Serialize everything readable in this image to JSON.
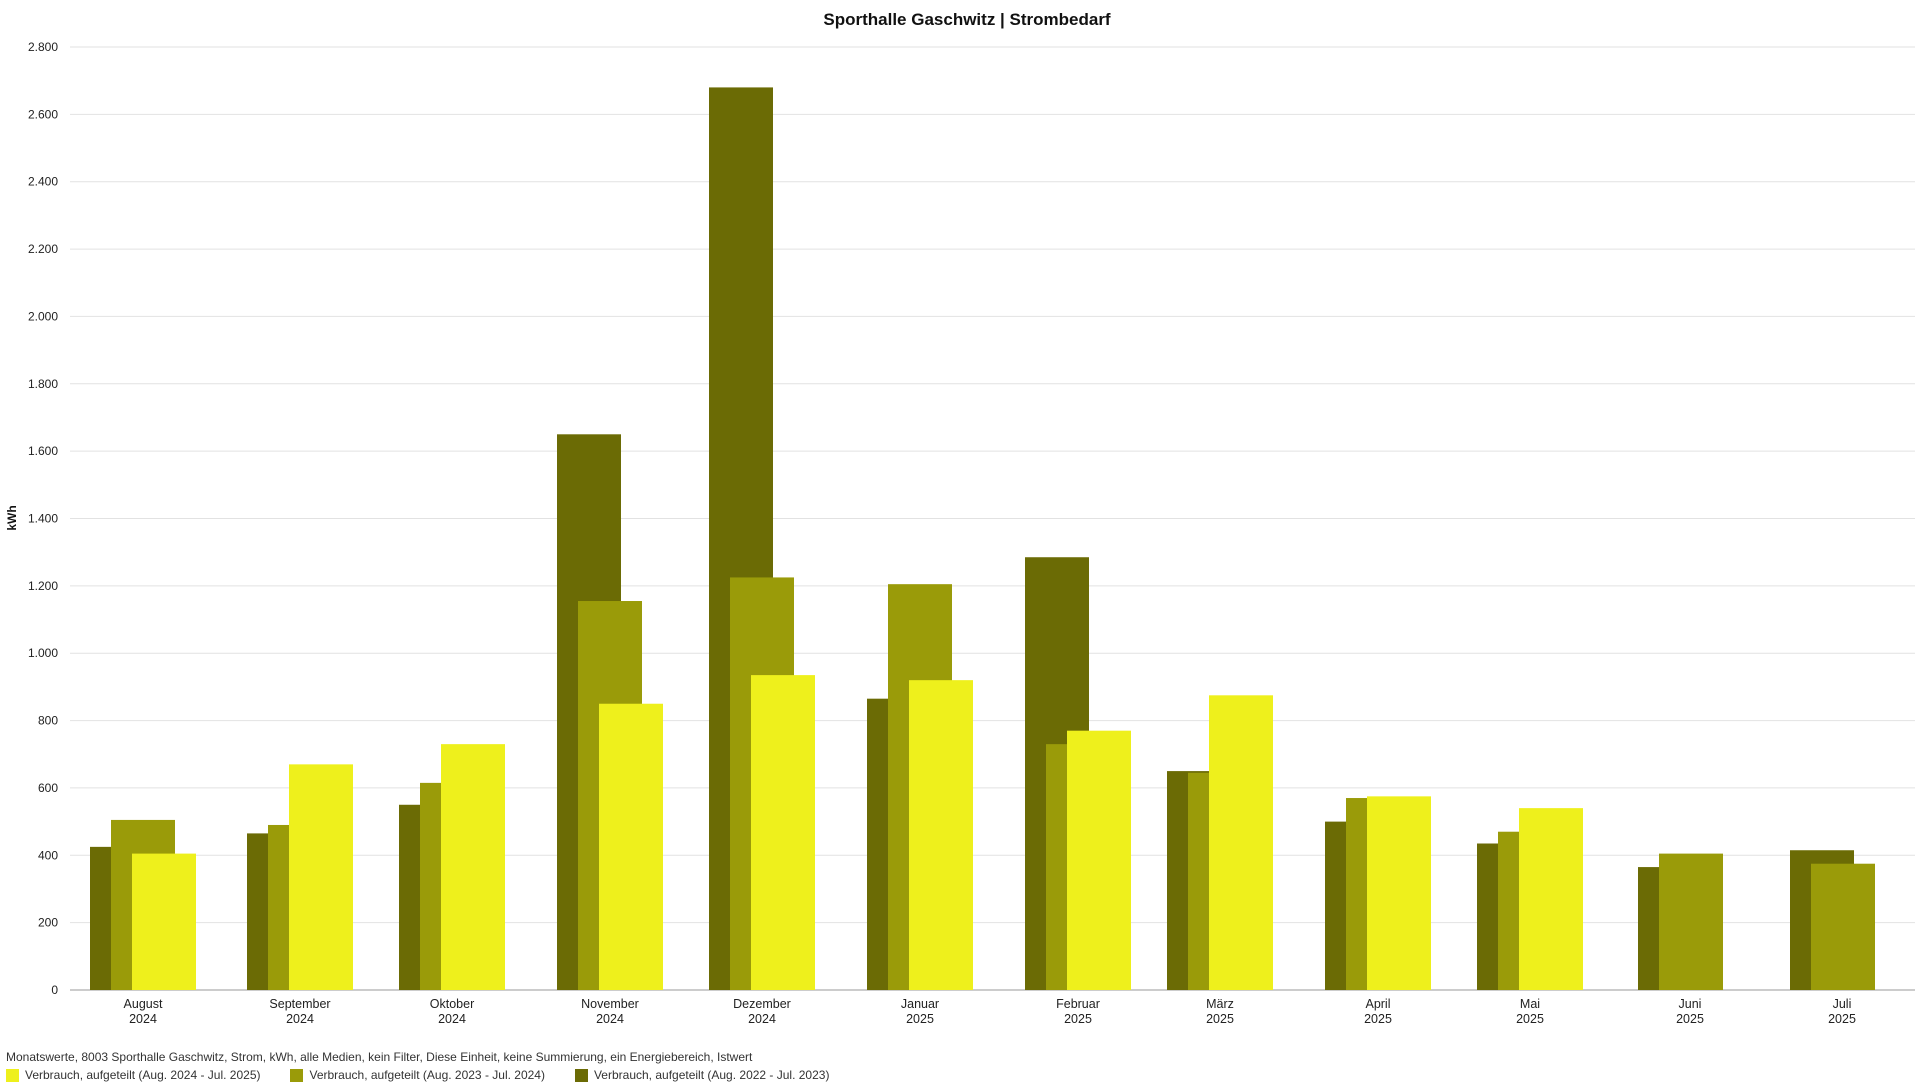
{
  "chart_data": {
    "type": "bar",
    "title": "Sporthalle Gaschwitz | Strombedarf",
    "ylabel": "kWh",
    "ylim": [
      0,
      2800
    ],
    "yticks": [
      0,
      200,
      400,
      600,
      800,
      1000,
      1200,
      1400,
      1600,
      1800,
      2000,
      2200,
      2400,
      2600,
      2800
    ],
    "ytick_labels": [
      "0",
      "200",
      "400",
      "600",
      "800",
      "1.000",
      "1.200",
      "1.400",
      "1.600",
      "1.800",
      "2.000",
      "2.200",
      "2.400",
      "2.600",
      "2.800"
    ],
    "categories": [
      {
        "month": "August",
        "year": "2024"
      },
      {
        "month": "September",
        "year": "2024"
      },
      {
        "month": "Oktober",
        "year": "2024"
      },
      {
        "month": "November",
        "year": "2024"
      },
      {
        "month": "Dezember",
        "year": "2024"
      },
      {
        "month": "Januar",
        "year": "2025"
      },
      {
        "month": "Februar",
        "year": "2025"
      },
      {
        "month": "März",
        "year": "2025"
      },
      {
        "month": "April",
        "year": "2025"
      },
      {
        "month": "Mai",
        "year": "2025"
      },
      {
        "month": "Juni",
        "year": "2025"
      },
      {
        "month": "Juli",
        "year": "2025"
      }
    ],
    "series": [
      {
        "name": "Verbrauch, aufgeteilt (Aug. 2022 - Jul. 2023)",
        "color": "#6b6b05",
        "values": [
          425,
          465,
          550,
          1650,
          2680,
          865,
          1285,
          650,
          500,
          435,
          365,
          415
        ]
      },
      {
        "name": "Verbrauch, aufgeteilt (Aug. 2023 - Jul. 2024)",
        "color": "#9a9b09",
        "values": [
          505,
          490,
          615,
          1155,
          1225,
          1205,
          730,
          645,
          570,
          470,
          405,
          375
        ]
      },
      {
        "name": "Verbrauch, aufgeteilt (Aug. 2024 - Jul. 2025)",
        "color": "#eef01c",
        "values": [
          405,
          670,
          730,
          850,
          935,
          920,
          770,
          875,
          575,
          540,
          null,
          null
        ]
      }
    ],
    "grid": true,
    "legend_position": "bottom-left"
  },
  "footer": {
    "description": "Monatswerte, 8003 Sporthalle Gaschwitz, Strom, kWh, alle Medien, kein Filter, Diese Einheit, keine Summierung, ein Energiebereich, Istwert"
  },
  "legend": [
    {
      "label": "Verbrauch, aufgeteilt (Aug. 2024 - Jul. 2025)",
      "color": "#eef01c"
    },
    {
      "label": "Verbrauch, aufgeteilt (Aug. 2023 - Jul. 2024)",
      "color": "#9a9b09"
    },
    {
      "label": "Verbrauch, aufgeteilt (Aug. 2022 - Jul. 2023)",
      "color": "#6b6b05"
    }
  ]
}
